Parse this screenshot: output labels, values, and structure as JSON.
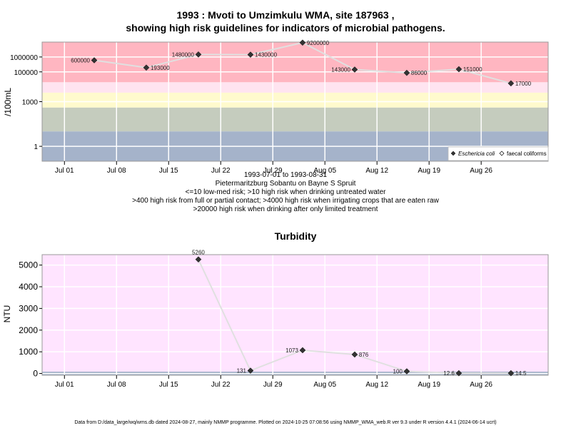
{
  "page": {
    "title_line1": "1993 : Mvoti to Umzimkulu WMA, site 187963 ,",
    "title_line2": "showing high risk guidelines for indicators of microbial pathogens.",
    "subtitle_lines": [
      "1993-07-01 to 1993-08-31",
      "Pietermaritzburg Sobantu on Bayne S Spruit",
      "<=10 low-med risk; >10 high risk when drinking untreated water",
      ">400 high risk from full or partial contact; >4000 high risk when irrigating crops that are eaten raw",
      ">20000 high risk when drinking after only limited treatment"
    ],
    "footer": "Data from D:/data_large/wq/wms.db dated 2024-08-27, mainly NMMP programme. Plotted on 2024-10-25 07:08:56 using NMMP_WMA_web.R ver 9.3 under R version 4.4.1 (2024-06-14 ucrt)"
  },
  "colors": {
    "risk_high": "#FFB6C1",
    "risk_contact": "#FFE4F0",
    "risk_irrigation": "#FFFACD",
    "risk_lowmed": "#C5CCBE",
    "risk_low": "#A5B3CA",
    "turbidity_bg": "#FFE4FF",
    "turbidity_base": "#A5B3CA",
    "line": "#E0E0E0",
    "marker": "#333333"
  },
  "chart_data": [
    {
      "type": "line",
      "title": "",
      "ylabel": "/100mL",
      "yscale": "log",
      "ylim": [
        0.1,
        10000000
      ],
      "x_range": [
        "1993-06-28",
        "1993-09-04"
      ],
      "yticks": [
        {
          "value": 1,
          "label": "1"
        },
        {
          "value": 1000,
          "label": "1000"
        },
        {
          "value": 100000,
          "label": "100000"
        },
        {
          "value": 1000000,
          "label": "1000000"
        }
      ],
      "xticks": [
        {
          "date": "1993-07-01",
          "label": "Jul 01"
        },
        {
          "date": "1993-07-08",
          "label": "Jul 08"
        },
        {
          "date": "1993-07-15",
          "label": "Jul 15"
        },
        {
          "date": "1993-07-22",
          "label": "Jul 22"
        },
        {
          "date": "1993-07-29",
          "label": "Jul 29"
        },
        {
          "date": "1993-08-05",
          "label": "Aug 05"
        },
        {
          "date": "1993-08-12",
          "label": "Aug 12"
        },
        {
          "date": "1993-08-19",
          "label": "Aug 19"
        },
        {
          "date": "1993-08-26",
          "label": "Aug 26"
        }
      ],
      "risk_bands": [
        {
          "from": 20000,
          "to": 10000000,
          "color": "#FFB6C1"
        },
        {
          "from": 4000,
          "to": 20000,
          "color": "#FFE4F0"
        },
        {
          "from": 400,
          "to": 4000,
          "color": "#FFFACD"
        },
        {
          "from": 10,
          "to": 400,
          "color": "#C5CCBE"
        },
        {
          "from": 0.1,
          "to": 10,
          "color": "#A5B3CA"
        }
      ],
      "series": [
        {
          "name": "Eschericia coli",
          "points": [
            {
              "x": "1993-07-05",
              "y": 600000,
              "label": "600000",
              "label_side": "left"
            },
            {
              "x": "1993-07-12",
              "y": 193000,
              "label": "193000",
              "label_side": "right"
            },
            {
              "x": "1993-07-19",
              "y": 1480000,
              "label": "1480000",
              "label_side": "left"
            },
            {
              "x": "1993-07-26",
              "y": 1430000,
              "label": "1430000",
              "label_side": "right"
            },
            {
              "x": "1993-08-02",
              "y": 9200000,
              "label": "9200000",
              "label_side": "right"
            },
            {
              "x": "1993-08-09",
              "y": 143000,
              "label": "143000",
              "label_side": "left"
            },
            {
              "x": "1993-08-16",
              "y": 86000,
              "label": "86000",
              "label_side": "right"
            },
            {
              "x": "1993-08-23",
              "y": 151000,
              "label": "151000",
              "label_side": "right"
            },
            {
              "x": "1993-08-30",
              "y": 17000,
              "label": "17000",
              "label_side": "right"
            }
          ]
        }
      ],
      "legend": {
        "position": "bottom-right",
        "entries": [
          "Eschericia coli",
          "faecal coliforms"
        ]
      }
    },
    {
      "type": "line",
      "title": "Turbidity",
      "ylabel": "NTU",
      "ylim": [
        -80,
        5480
      ],
      "x_range": [
        "1993-06-28",
        "1993-09-04"
      ],
      "yticks": [
        {
          "value": 0,
          "label": "0"
        },
        {
          "value": 1000,
          "label": "1000"
        },
        {
          "value": 2000,
          "label": "2000"
        },
        {
          "value": 3000,
          "label": "3000"
        },
        {
          "value": 4000,
          "label": "4000"
        },
        {
          "value": 5000,
          "label": "5000"
        }
      ],
      "xticks": [
        {
          "date": "1993-07-01",
          "label": "Jul 01"
        },
        {
          "date": "1993-07-08",
          "label": "Jul 08"
        },
        {
          "date": "1993-07-15",
          "label": "Jul 15"
        },
        {
          "date": "1993-07-22",
          "label": "Jul 22"
        },
        {
          "date": "1993-07-29",
          "label": "Jul 29"
        },
        {
          "date": "1993-08-05",
          "label": "Aug 05"
        },
        {
          "date": "1993-08-12",
          "label": "Aug 12"
        },
        {
          "date": "1993-08-19",
          "label": "Aug 19"
        },
        {
          "date": "1993-08-26",
          "label": "Aug 26"
        }
      ],
      "series": [
        {
          "name": "Turbidity",
          "points": [
            {
              "x": "1993-07-19",
              "y": 5260,
              "label": "5260",
              "label_side": "above"
            },
            {
              "x": "1993-07-26",
              "y": 131,
              "label": "131",
              "label_side": "left"
            },
            {
              "x": "1993-08-02",
              "y": 1073,
              "label": "1073",
              "label_side": "left"
            },
            {
              "x": "1993-08-09",
              "y": 876,
              "label": "876",
              "label_side": "right"
            },
            {
              "x": "1993-08-16",
              "y": 100,
              "label": "100",
              "label_side": "left"
            },
            {
              "x": "1993-08-23",
              "y": 12.6,
              "label": "12.6",
              "label_side": "left"
            },
            {
              "x": "1993-08-30",
              "y": 14.5,
              "label": "14.5",
              "label_side": "right"
            }
          ]
        }
      ]
    }
  ]
}
